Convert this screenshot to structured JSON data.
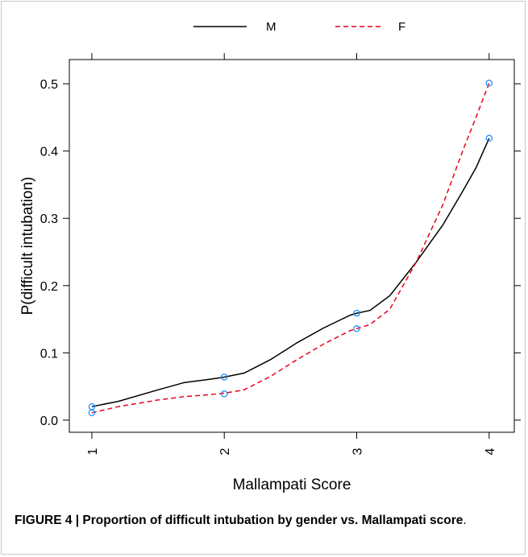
{
  "chart_data": {
    "type": "line",
    "xlabel": "Mallampati Score",
    "ylabel": "P(difficult intubation)",
    "x_ticks": [
      "1",
      "2",
      "3",
      "4"
    ],
    "y_ticks": [
      "0.0",
      "0.1",
      "0.2",
      "0.3",
      "0.4",
      "0.5"
    ],
    "xlim": [
      0.83,
      4.19
    ],
    "ylim": [
      -0.018,
      0.536
    ],
    "legend_position": "top-center",
    "points_color": "#1f8fff",
    "series": [
      {
        "name": "M",
        "color": "#000000",
        "dash": "solid",
        "points": [
          [
            1,
            0.02
          ],
          [
            2,
            0.064
          ],
          [
            3,
            0.159
          ],
          [
            4,
            0.419
          ]
        ],
        "curve": [
          [
            1,
            0.02
          ],
          [
            1.2,
            0.028
          ],
          [
            1.5,
            0.045
          ],
          [
            1.7,
            0.056
          ],
          [
            1.9,
            0.061
          ],
          [
            2,
            0.064
          ],
          [
            2.15,
            0.07
          ],
          [
            2.35,
            0.09
          ],
          [
            2.55,
            0.115
          ],
          [
            2.75,
            0.137
          ],
          [
            2.95,
            0.156
          ],
          [
            3,
            0.159
          ],
          [
            3.1,
            0.163
          ],
          [
            3.25,
            0.185
          ],
          [
            3.45,
            0.235
          ],
          [
            3.65,
            0.29
          ],
          [
            3.8,
            0.34
          ],
          [
            3.9,
            0.375
          ],
          [
            4,
            0.419
          ]
        ]
      },
      {
        "name": "F",
        "color": "#e8001c",
        "dash": "dashed",
        "points": [
          [
            1,
            0.011
          ],
          [
            2,
            0.039
          ],
          [
            3,
            0.136
          ],
          [
            4,
            0.501
          ]
        ],
        "curve": [
          [
            1,
            0.011
          ],
          [
            1.2,
            0.02
          ],
          [
            1.5,
            0.03
          ],
          [
            1.7,
            0.035
          ],
          [
            1.9,
            0.038
          ],
          [
            2,
            0.04
          ],
          [
            2.15,
            0.045
          ],
          [
            2.35,
            0.065
          ],
          [
            2.55,
            0.09
          ],
          [
            2.75,
            0.113
          ],
          [
            2.95,
            0.133
          ],
          [
            3,
            0.136
          ],
          [
            3.1,
            0.142
          ],
          [
            3.25,
            0.165
          ],
          [
            3.45,
            0.235
          ],
          [
            3.65,
            0.32
          ],
          [
            3.8,
            0.4
          ],
          [
            3.9,
            0.45
          ],
          [
            4,
            0.501
          ]
        ]
      }
    ]
  },
  "caption": {
    "bold_part": "FIGURE 4 | Proportion of difficult intubation by gender vs. Mallampati score",
    "rest": "."
  }
}
